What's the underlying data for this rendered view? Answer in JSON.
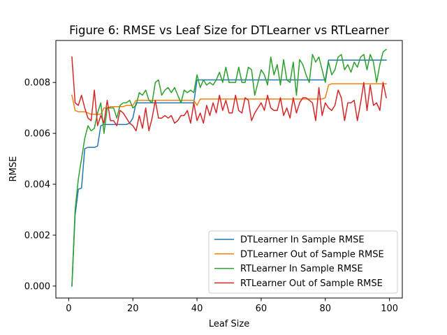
{
  "chart_data": {
    "type": "line",
    "title": "Figure 6: RMSE vs Leaf Size for DTLearner vs RTLearner",
    "xlabel": "Leaf Size",
    "ylabel": "RMSE",
    "xlim": [
      -4,
      104
    ],
    "ylim": [
      -0.00047,
      0.00965
    ],
    "xticks": [
      0,
      20,
      40,
      60,
      80,
      100
    ],
    "yticks": [
      0.0,
      0.002,
      0.004,
      0.006,
      0.008
    ],
    "ytick_labels": [
      "0.000",
      "0.002",
      "0.004",
      "0.006",
      "0.008"
    ],
    "grid": false,
    "legend_position": "lower-right",
    "x_start": 1,
    "series": [
      {
        "name": "DTLearner In Sample RMSE",
        "color": "#1f77b4",
        "values": [
          0.0,
          0.0028,
          0.0038,
          0.00385,
          0.0054,
          0.00545,
          0.00545,
          0.00545,
          0.0055,
          0.0063,
          0.00635,
          0.00635,
          0.00635,
          0.00635,
          0.00635,
          0.00635,
          0.00635,
          0.00635,
          0.0064,
          0.0066,
          0.0072,
          0.0072,
          0.0072,
          0.0072,
          0.0072,
          0.0072,
          0.0072,
          0.0072,
          0.0072,
          0.0072,
          0.0072,
          0.0072,
          0.0072,
          0.0072,
          0.0072,
          0.0072,
          0.0072,
          0.0072,
          0.0072,
          0.0081,
          0.0081,
          0.0081,
          0.0081,
          0.0081,
          0.0081,
          0.0081,
          0.0081,
          0.0081,
          0.0081,
          0.0081,
          0.0081,
          0.0081,
          0.0081,
          0.0081,
          0.0081,
          0.0081,
          0.0081,
          0.0081,
          0.0081,
          0.0081,
          0.0081,
          0.0081,
          0.0081,
          0.0081,
          0.0081,
          0.0081,
          0.0081,
          0.0081,
          0.0081,
          0.0081,
          0.0081,
          0.0081,
          0.0081,
          0.0081,
          0.0081,
          0.0081,
          0.0081,
          0.0081,
          0.0081,
          0.0081,
          0.00888,
          0.00888,
          0.00888,
          0.00888,
          0.00888,
          0.00888,
          0.00888,
          0.00888,
          0.00888,
          0.00888,
          0.00888,
          0.00888,
          0.00888,
          0.00888,
          0.00888,
          0.00888,
          0.00888,
          0.00888,
          0.00888
        ]
      },
      {
        "name": "DTLearner Out of Sample RMSE",
        "color": "#ff7f0e",
        "values": [
          0.0075,
          0.0069,
          0.00685,
          0.00685,
          0.00685,
          0.0068,
          0.00675,
          0.00675,
          0.00675,
          0.00675,
          0.007,
          0.007,
          0.00705,
          0.00705,
          0.00705,
          0.00705,
          0.00705,
          0.0071,
          0.0071,
          0.0071,
          0.0073,
          0.0073,
          0.0073,
          0.0073,
          0.0073,
          0.0073,
          0.0073,
          0.0073,
          0.0073,
          0.0073,
          0.0073,
          0.0073,
          0.0073,
          0.0073,
          0.0073,
          0.0073,
          0.0073,
          0.0073,
          0.0073,
          0.0071,
          0.00735,
          0.00735,
          0.00735,
          0.00735,
          0.00735,
          0.00735,
          0.00735,
          0.00735,
          0.00735,
          0.00735,
          0.00735,
          0.00735,
          0.00735,
          0.00735,
          0.00735,
          0.00735,
          0.00735,
          0.00735,
          0.00735,
          0.00735,
          0.00735,
          0.00735,
          0.00735,
          0.00735,
          0.00735,
          0.00735,
          0.00735,
          0.00735,
          0.00735,
          0.00735,
          0.00735,
          0.00735,
          0.00735,
          0.00735,
          0.00735,
          0.00735,
          0.00735,
          0.00735,
          0.00735,
          0.0074,
          0.0079,
          0.00795,
          0.00795,
          0.00795,
          0.00795,
          0.00795,
          0.00795,
          0.00795,
          0.00795,
          0.00795,
          0.00795,
          0.00795,
          0.00795,
          0.00795,
          0.00795,
          0.00795,
          0.00795,
          0.00795,
          0.00795
        ]
      },
      {
        "name": "RTLearner In Sample RMSE",
        "color": "#2ca02c",
        "values": [
          0.0,
          0.003,
          0.0042,
          0.005,
          0.0058,
          0.0063,
          0.0061,
          0.0062,
          0.0068,
          0.0072,
          0.006,
          0.007,
          0.007,
          0.007,
          0.0066,
          0.0071,
          0.0072,
          0.0072,
          0.0073,
          0.007,
          0.0071,
          0.0076,
          0.0075,
          0.0077,
          0.0073,
          0.0072,
          0.008,
          0.0081,
          0.0075,
          0.0077,
          0.0078,
          0.0076,
          0.0078,
          0.0075,
          0.0072,
          0.0077,
          0.0076,
          0.0077,
          0.0076,
          0.0083,
          0.0078,
          0.0081,
          0.0079,
          0.008,
          0.0079,
          0.0081,
          0.0084,
          0.008,
          0.0086,
          0.008,
          0.008,
          0.008,
          0.0086,
          0.008,
          0.008,
          0.0086,
          0.0085,
          0.0075,
          0.008,
          0.0085,
          0.0083,
          0.0079,
          0.009,
          0.0083,
          0.0087,
          0.0079,
          0.0089,
          0.0081,
          0.008,
          0.0088,
          0.0075,
          0.0089,
          0.0087,
          0.0083,
          0.008,
          0.0091,
          0.0088,
          0.009,
          0.0085,
          0.008,
          0.0088,
          0.0083,
          0.0085,
          0.009,
          0.0091,
          0.0085,
          0.0087,
          0.0084,
          0.0088,
          0.0086,
          0.009,
          0.0091,
          0.0085,
          0.0091,
          0.0088,
          0.008,
          0.0087,
          0.0092,
          0.0093
        ]
      },
      {
        "name": "RTLearner Out of Sample RMSE",
        "color": "#d62728",
        "values": [
          0.009,
          0.0072,
          0.0071,
          0.0075,
          0.007,
          0.0066,
          0.0065,
          0.0077,
          0.0063,
          0.0067,
          0.0064,
          0.0073,
          0.0065,
          0.0065,
          0.0063,
          0.0069,
          0.0068,
          0.0066,
          0.0064,
          0.0063,
          0.0061,
          0.0067,
          0.0062,
          0.007,
          0.0061,
          0.0066,
          0.0073,
          0.0066,
          0.0066,
          0.0067,
          0.0066,
          0.0067,
          0.0064,
          0.0065,
          0.0067,
          0.0067,
          0.0069,
          0.0064,
          0.0072,
          0.0065,
          0.0068,
          0.0064,
          0.0071,
          0.0067,
          0.0072,
          0.0068,
          0.0075,
          0.0069,
          0.0073,
          0.0068,
          0.0068,
          0.0075,
          0.0069,
          0.0068,
          0.0074,
          0.0073,
          0.0065,
          0.0068,
          0.007,
          0.0072,
          0.0069,
          0.0075,
          0.007,
          0.0069,
          0.0069,
          0.0074,
          0.0067,
          0.007,
          0.0066,
          0.0074,
          0.0068,
          0.0072,
          0.0074,
          0.0074,
          0.0073,
          0.0072,
          0.0065,
          0.0078,
          0.0067,
          0.0072,
          0.007,
          0.0069,
          0.0071,
          0.0077,
          0.0074,
          0.0065,
          0.0072,
          0.0072,
          0.0073,
          0.0065,
          0.0072,
          0.008,
          0.0069,
          0.0079,
          0.0071,
          0.0072,
          0.0069,
          0.008,
          0.0074
        ]
      }
    ]
  }
}
